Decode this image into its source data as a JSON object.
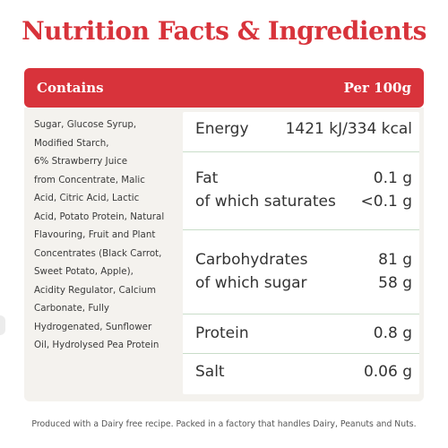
{
  "title": "Nutrition Facts & Ingredients",
  "header": {
    "left_label": "Contains",
    "right_label": "Per 100g"
  },
  "ingredients": [
    "Sugar, Glucose Syrup,",
    "Modified Starch,",
    "6% Strawberry Juice",
    "from Concentrate, Malic",
    "Acid, Citric Acid, Lactic",
    "Acid, Potato Protein, Natural",
    "Flavouring, Fruit and Plant",
    "Concentrates (Black Carrot,",
    "Sweet Potato, Apple),",
    "Acidity Regulator, Calcium",
    "Carbonate, Fully",
    "Hydrogenated, Sunflower",
    "Oil, Hydrolysed Pea Protein"
  ],
  "nutrition": {
    "energy": {
      "label": "Energy",
      "value": "1421 kJ/334 kcal"
    },
    "fat": {
      "label": "Fat",
      "value": "0.1 g"
    },
    "saturates": {
      "label": "of which saturates",
      "value": "<0.1 g"
    },
    "carbohydrates": {
      "label": "Carbohydrates",
      "value": "81 g"
    },
    "sugar": {
      "label": "of which sugar",
      "value": "58 g"
    },
    "protein": {
      "label": "Protein",
      "value": "0.8 g"
    },
    "salt": {
      "label": "Salt",
      "value": "0.06 g"
    }
  },
  "footer": "Produced with a Dairy free recipe. Packed in a factory that handles Dairy, Peanuts and Nuts.",
  "colors": {
    "accent": "#d8333b",
    "panel": "#f4f2ee",
    "divider": "#c9ddc9"
  }
}
